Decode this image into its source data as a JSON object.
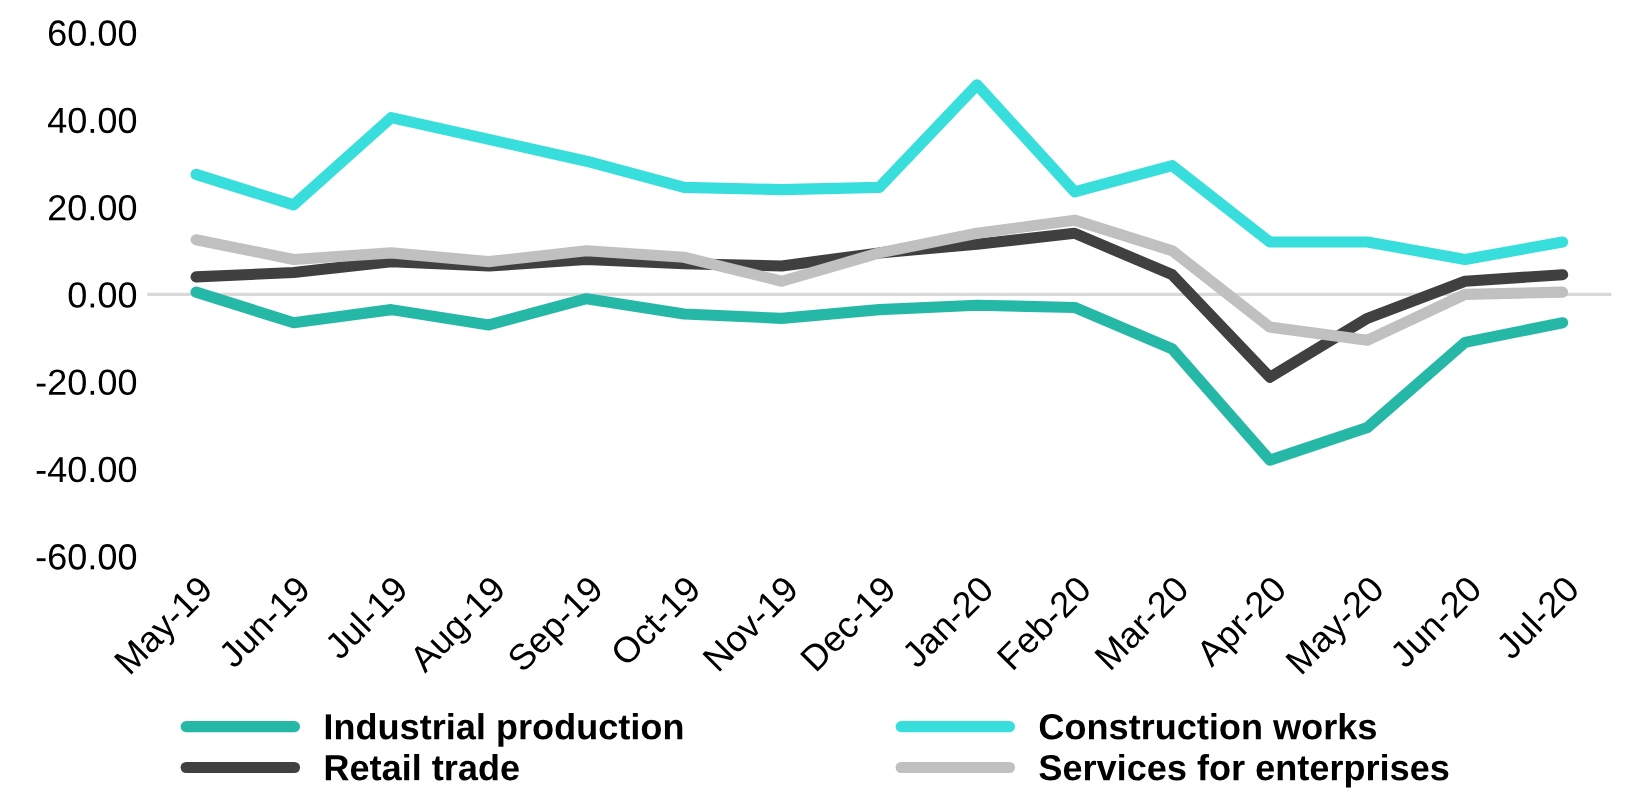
{
  "chart_data": {
    "type": "line",
    "categories": [
      "May-19",
      "Jun-19",
      "Jul-19",
      "Aug-19",
      "Sep-19",
      "Oct-19",
      "Nov-19",
      "Dec-19",
      "Jan-20",
      "Feb-20",
      "Mar-20",
      "Apr-20",
      "May-20",
      "Jun-20",
      "Jul-20"
    ],
    "series": [
      {
        "name": "Industrial production",
        "color": "#26b8a6",
        "values": [
          0.5,
          -6.5,
          -3.5,
          -7,
          -1,
          -4.5,
          -5.5,
          -3.5,
          -2.5,
          -3,
          -12.5,
          -38,
          -30.5,
          -11,
          -6.5
        ]
      },
      {
        "name": "Construction works",
        "color": "#38dedc",
        "values": [
          27.5,
          20.5,
          40.5,
          35.5,
          30.5,
          24.5,
          24,
          24.5,
          48,
          23.5,
          29.5,
          12,
          12,
          8,
          12
        ]
      },
      {
        "name": "Retail trade",
        "color": "#404040",
        "values": [
          4,
          5,
          7.5,
          6.5,
          8,
          7,
          6.5,
          9.5,
          11.5,
          14,
          4.5,
          -19,
          -5.5,
          3,
          4.5
        ]
      },
      {
        "name": "Services for enterprises",
        "color": "#c0c0c0",
        "values": [
          12.5,
          8,
          9.5,
          7.5,
          10,
          8.5,
          3,
          9.5,
          14,
          17,
          10,
          -7.5,
          -10.5,
          0,
          0.5
        ]
      }
    ],
    "ylim": [
      -60,
      60
    ],
    "yticks": [
      {
        "value": -60,
        "label": "-60.00"
      },
      {
        "value": -40,
        "label": "-40.00"
      },
      {
        "value": -20,
        "label": "-20.00"
      },
      {
        "value": 0,
        "label": "0.00"
      },
      {
        "value": 20,
        "label": "20.00"
      },
      {
        "value": 40,
        "label": "40.00"
      },
      {
        "value": 60,
        "label": "60.00"
      }
    ],
    "ref_lines": [
      {
        "axis": "y",
        "value": 0,
        "color": "#d9d9d9"
      }
    ],
    "grid": false,
    "legend": "bottom",
    "marker": "none",
    "line_style": "solid"
  }
}
